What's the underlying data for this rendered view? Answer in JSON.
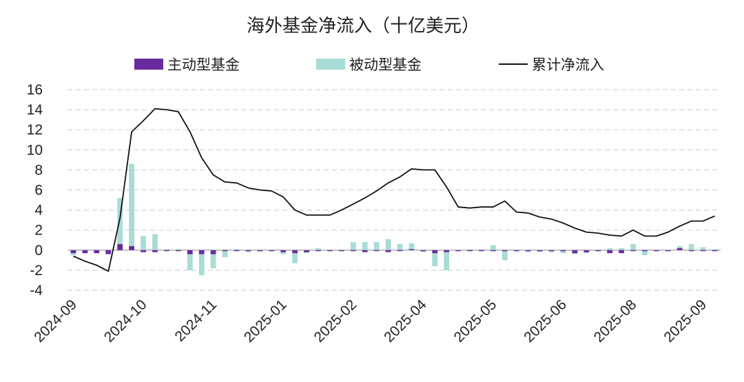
{
  "chart_data": {
    "type": "bar",
    "title": "海外基金净流入（十亿美元）",
    "ylim": [
      -4,
      16
    ],
    "yticks": [
      -4,
      -2,
      0,
      2,
      4,
      6,
      8,
      10,
      12,
      14,
      16
    ],
    "x_tick_labels": [
      "2024-09",
      "2024-10",
      "2024-11",
      "2025-01",
      "2025-02",
      "2025-04",
      "2025-05",
      "2025-06",
      "2025-08",
      "2025-09"
    ],
    "x_tick_positions": [
      0,
      6,
      12,
      18,
      24,
      30,
      36,
      42,
      48,
      54
    ],
    "legend": [
      "主动型基金",
      "被动型基金",
      "累计净流入"
    ],
    "colors": {
      "active": "#6a2b9e",
      "passive": "#a8dcd6",
      "cumulative": "#111111"
    },
    "series": [
      {
        "name": "主动型基金",
        "type": "bar",
        "values": [
          -0.3,
          -0.3,
          -0.3,
          -0.4,
          0.6,
          0.4,
          -0.2,
          -0.2,
          -0.1,
          -0.1,
          -0.4,
          -0.4,
          -0.4,
          -0.1,
          -0.1,
          -0.1,
          -0.1,
          -0.1,
          -0.2,
          -0.3,
          -0.2,
          -0.1,
          -0.1,
          -0.1,
          -0.1,
          -0.2,
          -0.1,
          -0.2,
          -0.1,
          0.1,
          -0.1,
          -0.3,
          -0.2,
          -0.1,
          -0.1,
          -0.1,
          -0.1,
          -0.1,
          -0.1,
          -0.1,
          -0.1,
          -0.1,
          -0.1,
          -0.3,
          -0.2,
          -0.1,
          -0.3,
          -0.3,
          -0.1,
          -0.1,
          -0.1,
          -0.1,
          0.2,
          -0.1,
          -0.1,
          -0.1
        ]
      },
      {
        "name": "被动型基金",
        "type": "bar",
        "values": [
          -0.5,
          -0.3,
          -0.2,
          -0.2,
          5.2,
          8.6,
          1.4,
          1.6,
          0.1,
          0.1,
          -2.0,
          -2.5,
          -1.8,
          -0.7,
          0.1,
          -0.2,
          -0.1,
          0.0,
          -0.4,
          -1.3,
          -0.3,
          0.2,
          0.0,
          0.0,
          0.8,
          0.8,
          0.8,
          1.1,
          0.6,
          0.7,
          -0.2,
          -1.6,
          -2.0,
          0.0,
          0.1,
          0.1,
          0.5,
          -1.0,
          -0.1,
          -0.2,
          -0.2,
          -0.2,
          -0.3,
          -0.4,
          -0.3,
          -0.1,
          0.2,
          0.2,
          0.6,
          -0.5,
          0.0,
          0.0,
          0.4,
          0.6,
          0.3,
          0.1
        ]
      },
      {
        "name": "累计净流入",
        "type": "line",
        "values": [
          -0.6,
          -1.1,
          -1.5,
          -2.1,
          3.2,
          11.8,
          12.9,
          14.1,
          14.0,
          13.8,
          11.8,
          9.2,
          7.5,
          6.8,
          6.7,
          6.2,
          6.0,
          5.9,
          5.3,
          4.0,
          3.5,
          3.5,
          3.5,
          4.0,
          4.6,
          5.2,
          5.9,
          6.7,
          7.3,
          8.1,
          8.0,
          8.0,
          6.3,
          4.3,
          4.2,
          4.3,
          4.3,
          4.9,
          3.8,
          3.7,
          3.3,
          3.1,
          2.7,
          2.2,
          1.8,
          1.7,
          1.5,
          1.4,
          2.0,
          1.4,
          1.4,
          1.8,
          2.4,
          2.9,
          2.9,
          3.4
        ]
      }
    ]
  }
}
